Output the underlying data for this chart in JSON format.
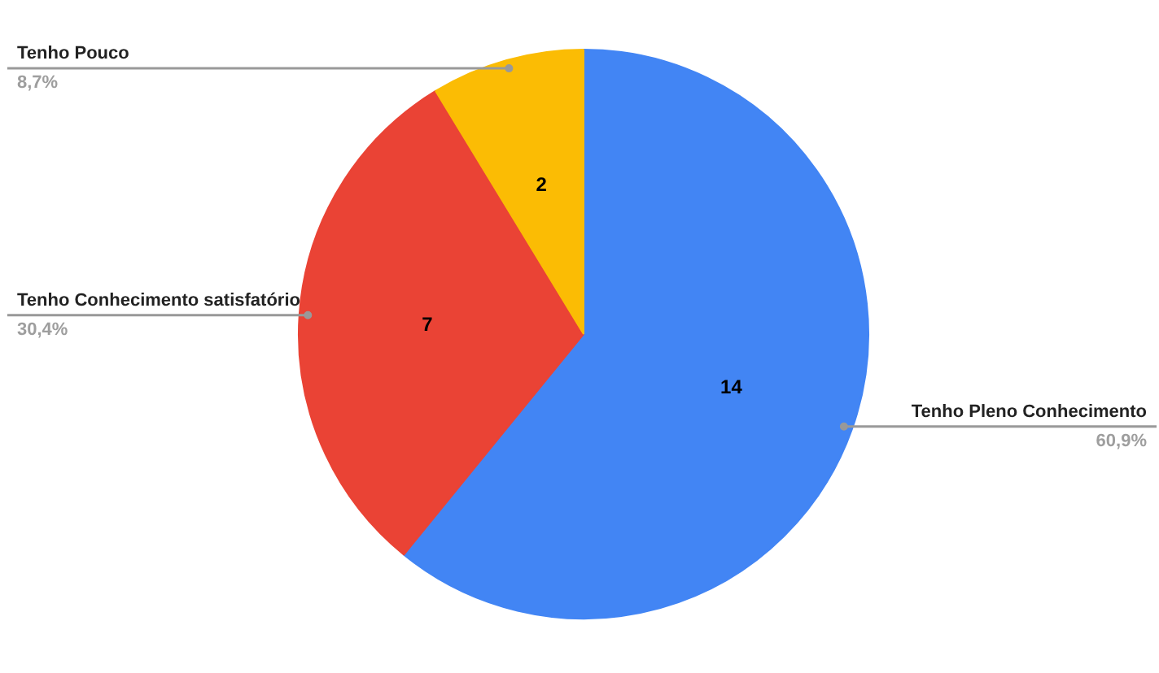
{
  "chart_data": {
    "type": "pie",
    "categories": [
      "Tenho Pleno Conhecimento",
      "Tenho Conhecimento satisfatório",
      "Tenho Pouco"
    ],
    "values": [
      14,
      7,
      2
    ],
    "colors": [
      "#4285f4",
      "#ea4335",
      "#fbbc04"
    ],
    "data_labels": true,
    "annotations": [
      "60,9%",
      "30,4%",
      "8,7%"
    ]
  }
}
